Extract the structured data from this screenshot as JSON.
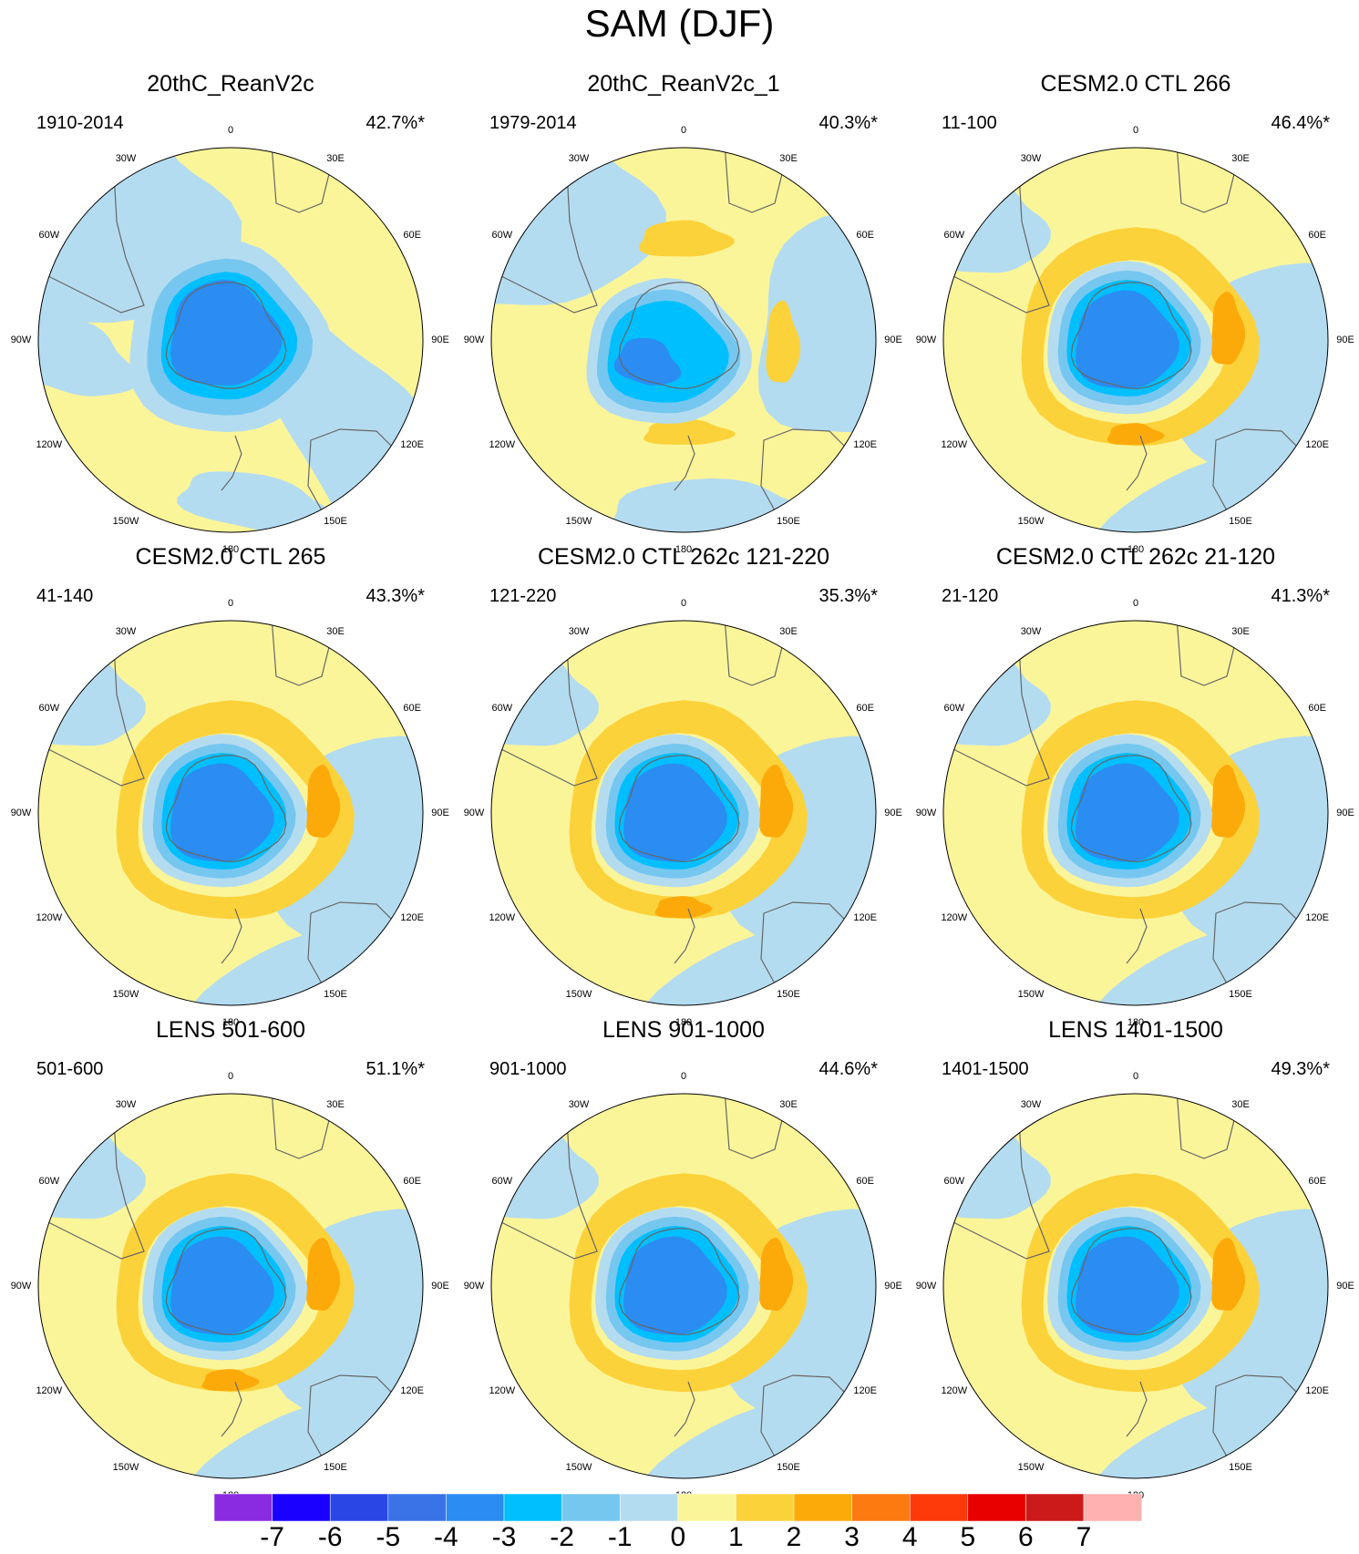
{
  "title": "SAM (DJF)",
  "longitude_labels": [
    "0",
    "30E",
    "60E",
    "90E",
    "120E",
    "150E",
    "180",
    "150W",
    "120W",
    "90W",
    "60W",
    "30W"
  ],
  "panels": [
    {
      "title": "20thC_ReanV2c",
      "period": "1910-2014",
      "variance": "42.7%*",
      "style": "rean"
    },
    {
      "title": "20thC_ReanV2c_1",
      "period": "1979-2014",
      "variance": "40.3%*",
      "style": "rean1"
    },
    {
      "title": "CESM2.0 CTL 266",
      "period": "11-100",
      "variance": "46.4%*",
      "style": "model"
    },
    {
      "title": "CESM2.0 CTL 265",
      "period": "41-140",
      "variance": "43.3%*",
      "style": "model"
    },
    {
      "title": "CESM2.0 CTL 262c 121-220",
      "period": "121-220",
      "variance": "35.3%*",
      "style": "model"
    },
    {
      "title": "CESM2.0 CTL 262c 21-120",
      "period": "21-120",
      "variance": "41.3%*",
      "style": "model"
    },
    {
      "title": "LENS 501-600",
      "period": "501-600",
      "variance": "51.1%*",
      "style": "model"
    },
    {
      "title": "LENS 901-1000",
      "period": "901-1000",
      "variance": "44.6%*",
      "style": "model"
    },
    {
      "title": "LENS 1401-1500",
      "period": "1401-1500",
      "variance": "49.3%*",
      "style": "model"
    }
  ],
  "colorbar": {
    "labels": [
      "-7",
      "-6",
      "-5",
      "-4",
      "-3",
      "-2",
      "-1",
      "0",
      "1",
      "2",
      "3",
      "4",
      "5",
      "6",
      "7"
    ],
    "colors": [
      "#8a2be2",
      "#1a00ff",
      "#2a47e6",
      "#3a73e8",
      "#2b8cf2",
      "#00bfff",
      "#76c7f0",
      "#b4dcf0",
      "#fbf59a",
      "#fcd23a",
      "#fcaa0a",
      "#fc7a10",
      "#ff3a0a",
      "#e80000",
      "#cc1a1a",
      "#ffb0b0"
    ]
  },
  "palette": {
    "ocean_neg1": "#b4dcf0",
    "pos1": "#fbf59a",
    "pos2": "#fcd23a",
    "pos3": "#fcaa0a",
    "neg2": "#76c7f0",
    "neg3": "#00bfff",
    "neg4": "#2b8cf2",
    "neg5": "#3a73e8",
    "coast": "#666666"
  }
}
